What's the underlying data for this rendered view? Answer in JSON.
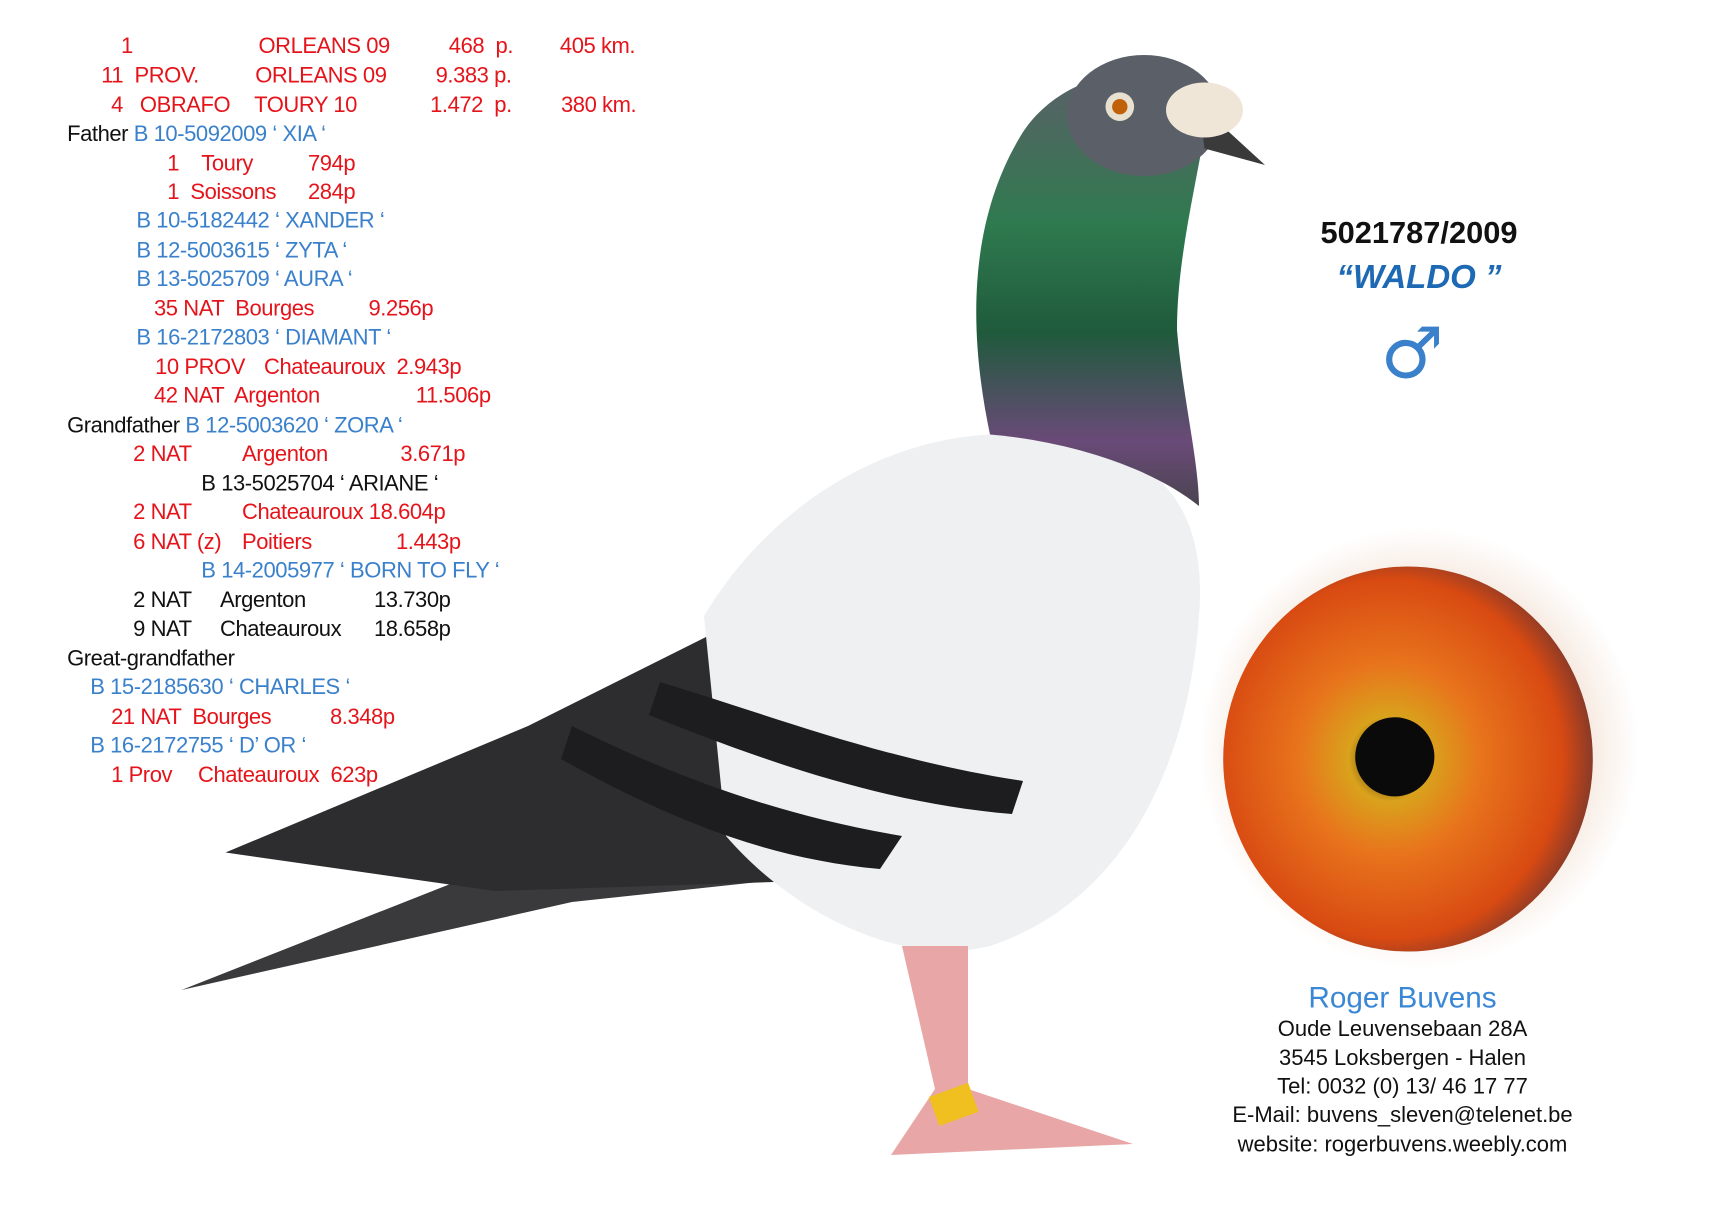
{
  "pigeon": {
    "ring": "5021787/2009",
    "name": "“WALDO ”",
    "sex_icon": "male-symbol",
    "sex_symbol": "♂"
  },
  "colors": {
    "result": "#e5141b",
    "pedigree": "#3a80cb",
    "text": "#111111",
    "name": "#1d69b3"
  },
  "results": [
    [
      "1",
      "ORLEANS 09",
      "468  p.",
      "405 km."
    ],
    [
      "11  PROV.",
      "ORLEANS 09",
      "9.383 p."
    ],
    [
      "4   OBRAFO",
      "TOURY 10",
      "1.472  p.",
      "380 km."
    ]
  ],
  "pedigree": {
    "father_label": "Father",
    "father": "B 10-5092009 ‘ XIA ‘",
    "father_results": [
      [
        "1    Toury",
        "794p"
      ],
      [
        "1  Soissons",
        "284p"
      ]
    ],
    "offspring_1": [
      "B 10-5182442 ‘ XANDER ‘",
      "B 12-5003615 ‘ ZYTA ‘",
      "B 13-5025709 ‘ AURA ‘"
    ],
    "aura_result": [
      "35 NAT  Bourges",
      "9.256p"
    ],
    "diamant": "B 16-2172803 ‘ DIAMANT ‘",
    "diamant_results": [
      [
        "10 PROV",
        "Chateauroux  2.943p"
      ],
      [
        "42 NAT  Argenton",
        "11.506p"
      ]
    ],
    "grandfather_label": "Grandfather",
    "grandfather": "B 12-5003620 ‘ ZORA ‘",
    "zora_result": [
      "2 NAT",
      "Argenton",
      "3.671p"
    ],
    "ariane": "B 13-5025704 ‘ ARIANE ‘",
    "ariane_results": [
      [
        "2 NAT",
        "Chateauroux 18.604p"
      ],
      [
        "6 NAT (z)",
        "Poitiers",
        "1.443p"
      ]
    ],
    "born_to_fly": "B 14-2005977 ‘ BORN TO FLY ‘",
    "born_to_fly_results": [
      [
        "2 NAT",
        "Argenton",
        "13.730p"
      ],
      [
        "9 NAT",
        "Chateauroux",
        "18.658p"
      ]
    ],
    "great_grandfather_label": "Great-grandfather",
    "charles": "B 15-2185630 ‘ CHARLES ‘",
    "charles_result": [
      "21 NAT  Bourges",
      "8.348p"
    ],
    "dor": "B 16-2172755 ‘ D’ OR ‘",
    "dor_result": [
      "1 Prov",
      "Chateauroux  623p"
    ]
  },
  "contact": {
    "owner": "Roger Buvens",
    "street": "Oude Leuvensebaan 28A",
    "city": "3545 Loksbergen - Halen",
    "tel": "Tel: 0032 (0) 13/ 46 17 77",
    "email": "E-Mail: buvens_sleven@telenet.be",
    "website": "website: rogerbuvens.weebly.com"
  }
}
